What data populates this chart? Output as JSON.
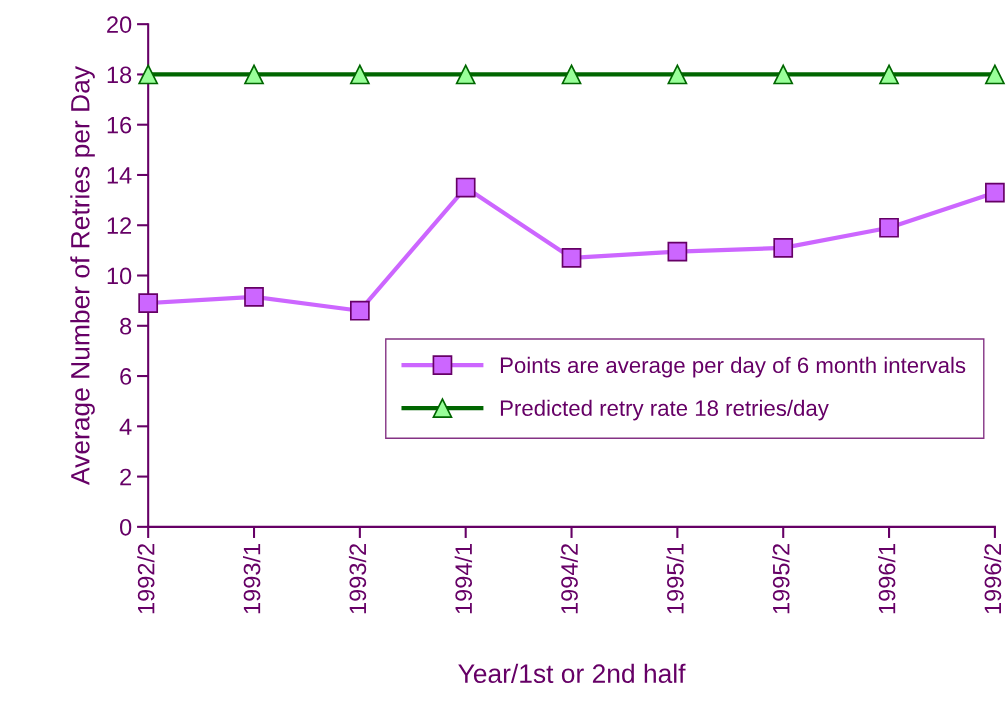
{
  "chart_data": {
    "type": "line",
    "xlabel": "Year/1st or 2nd half",
    "ylabel": "Average Number of Retries per Day",
    "categories": [
      "1992/2",
      "1993/1",
      "1993/2",
      "1994/1",
      "1994/2",
      "1995/1",
      "1995/2",
      "1996/1",
      "1996/2"
    ],
    "series": [
      {
        "name": "Points are average per day of 6 month intervals",
        "color": "#cc66ff",
        "marker": "square",
        "values": [
          8.9,
          9.15,
          8.6,
          13.5,
          10.7,
          10.95,
          11.1,
          11.9,
          13.3
        ]
      },
      {
        "name": "Predicted retry rate 18 retries/day",
        "color": "#006600",
        "marker": "triangle",
        "values": [
          18,
          18,
          18,
          18,
          18,
          18,
          18,
          18,
          18
        ]
      }
    ],
    "ylim": [
      0,
      20
    ],
    "yticks": [
      0,
      2,
      4,
      6,
      8,
      10,
      12,
      14,
      16,
      18,
      20
    ],
    "grid": false,
    "legend": "right",
    "line_style": "solid"
  }
}
